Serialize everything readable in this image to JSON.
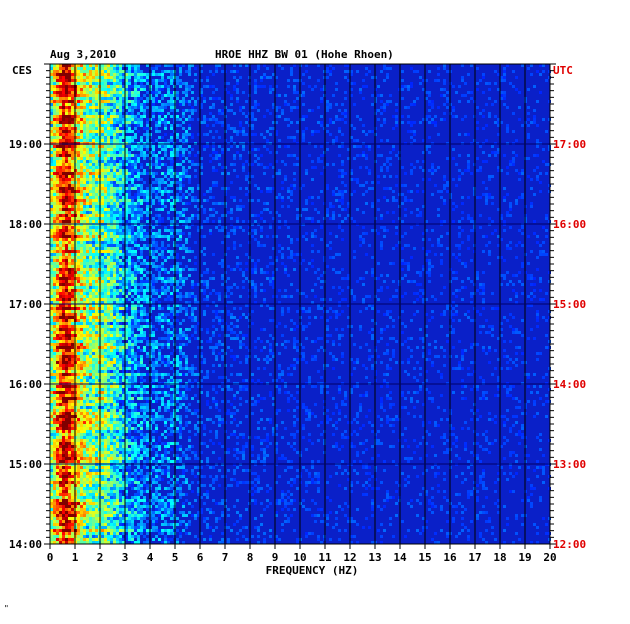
{
  "header": {
    "date": "Aug 3,2010",
    "station": "HROE HHZ BW 01 (Hohe Rhoen)",
    "left_zone": "CES",
    "right_zone": "UTC"
  },
  "footer_mark": "\"",
  "chart_data": {
    "type": "heatmap",
    "title": "HROE HHZ BW 01 (Hohe Rhoen)",
    "date": "Aug 3,2010",
    "xlabel": "FREQUENCY (HZ)",
    "xlim": [
      0,
      20
    ],
    "x_ticks": [
      "0",
      "1",
      "2",
      "3",
      "4",
      "5",
      "6",
      "7",
      "8",
      "9",
      "10",
      "11",
      "12",
      "13",
      "14",
      "15",
      "16",
      "17",
      "18",
      "19",
      "20"
    ],
    "y_left_label": "CES",
    "y_right_label": "UTC",
    "y_left_ticks": [
      "19:00",
      "18:00",
      "17:00",
      "16:00",
      "15:00",
      "14:00"
    ],
    "y_right_ticks": [
      "17:00",
      "16:00",
      "15:00",
      "14:00",
      "13:00",
      "12:00"
    ],
    "time_range_ces": [
      "14:00",
      "19:54"
    ],
    "grid": true,
    "colors": {
      "background": "#0a20c8",
      "grid": "#000000",
      "utc_text": "#e00000"
    },
    "intensity_profile": [
      {
        "freq": 0.0,
        "level": 0.45
      },
      {
        "freq": 0.3,
        "level": 0.7
      },
      {
        "freq": 0.6,
        "level": 0.95
      },
      {
        "freq": 1.0,
        "level": 0.7
      },
      {
        "freq": 1.5,
        "level": 0.5
      },
      {
        "freq": 2.0,
        "level": 0.5
      },
      {
        "freq": 2.5,
        "level": 0.42
      },
      {
        "freq": 3.0,
        "level": 0.3
      },
      {
        "freq": 4.0,
        "level": 0.18
      },
      {
        "freq": 5.0,
        "level": 0.2
      },
      {
        "freq": 6.0,
        "level": 0.08
      },
      {
        "freq": 10.0,
        "level": 0.05
      },
      {
        "freq": 20.0,
        "level": 0.04
      }
    ]
  }
}
